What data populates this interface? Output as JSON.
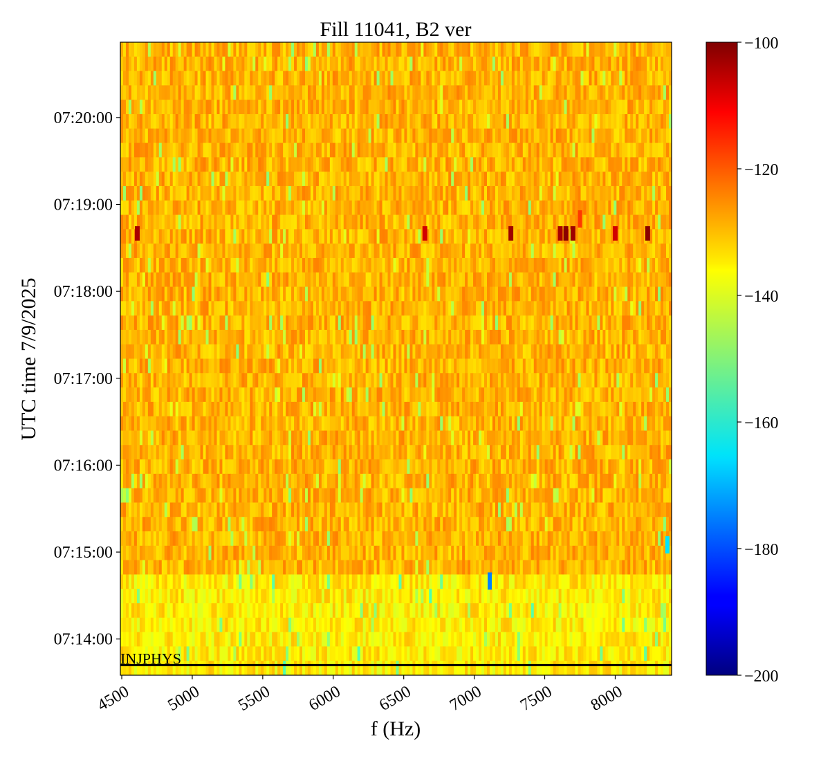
{
  "chart_data": {
    "type": "heatmap",
    "title": "Fill 11041, B2 ver",
    "xlabel": "f (Hz)",
    "ylabel": "UTC time 7/9/2025",
    "xlim": [
      4490,
      8400
    ],
    "x_ticks": [
      4500,
      5000,
      5500,
      6000,
      6500,
      7000,
      7500,
      8000
    ],
    "x_tick_labels": [
      "4500",
      "5000",
      "5500",
      "6000",
      "6500",
      "7000",
      "7500",
      "8000"
    ],
    "y_range": [
      "07:13:35",
      "07:20:52"
    ],
    "y_ticks": [
      "07:14:00",
      "07:15:00",
      "07:16:00",
      "07:17:00",
      "07:18:00",
      "07:19:00",
      "07:20:00"
    ],
    "y_tick_labels": [
      "07:14:00",
      "07:15:00",
      "07:16:00",
      "07:17:00",
      "07:18:00",
      "07:19:00",
      "07:20:00"
    ],
    "colorbar": {
      "range": [
        -200,
        -100
      ],
      "ticks": [
        -100,
        -120,
        -140,
        -160,
        -180,
        -200
      ],
      "tick_labels": [
        "−100",
        "−120",
        "−140",
        "−160",
        "−180",
        "−200"
      ],
      "colormap": "jet"
    },
    "typical_level_dB": {
      "before_07_14_45": -136,
      "after_07_14_45": -130
    },
    "hotspots": [
      {
        "time": "07:18:40",
        "f_Hz": 4610,
        "level_dB": -104
      },
      {
        "time": "07:18:40",
        "f_Hz": 6650,
        "level_dB": -108
      },
      {
        "time": "07:18:40",
        "f_Hz": 7260,
        "level_dB": -103
      },
      {
        "time": "07:18:40",
        "f_Hz": 7610,
        "level_dB": -104
      },
      {
        "time": "07:18:40",
        "f_Hz": 7650,
        "level_dB": -101
      },
      {
        "time": "07:18:40",
        "f_Hz": 7700,
        "level_dB": -103
      },
      {
        "time": "07:18:50",
        "f_Hz": 7750,
        "level_dB": -118
      },
      {
        "time": "07:18:40",
        "f_Hz": 8000,
        "level_dB": -108
      },
      {
        "time": "07:18:40",
        "f_Hz": 8230,
        "level_dB": -101
      },
      {
        "time": "07:14:40",
        "f_Hz": 7110,
        "level_dB": -175
      },
      {
        "time": "07:15:05",
        "f_Hz": 8370,
        "level_dB": -165
      }
    ],
    "annotations": [
      {
        "text": "INJPHYS",
        "time": "07:13:42",
        "f_Hz": 4490
      }
    ],
    "grid": false
  }
}
